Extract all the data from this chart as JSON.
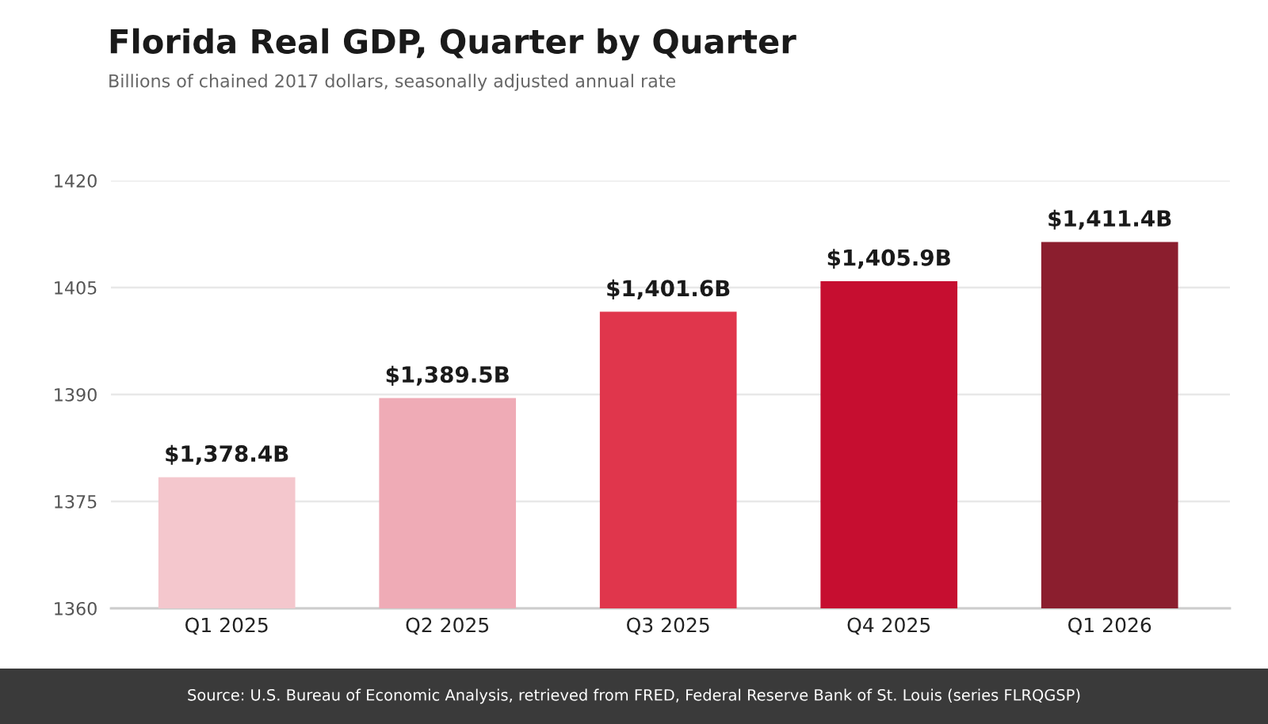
{
  "chart_data": {
    "type": "bar",
    "title": "Florida Real GDP, Quarter by Quarter",
    "subtitle": "Billions of chained 2017 dollars, seasonally adjusted annual rate",
    "categories": [
      "Q1 2025",
      "Q2 2025",
      "Q3 2025",
      "Q4 2025",
      "Q1 2026"
    ],
    "values": [
      1378.4,
      1389.5,
      1401.6,
      1405.9,
      1411.4
    ],
    "colors": [
      "#f4c7cd",
      "#efabb6",
      "#e0364c",
      "#c60e30",
      "#8b1e2e"
    ],
    "value_labels": [
      "$1,378.4B",
      "$1,389.5B",
      "$1,401.6B",
      "$1,405.9B",
      "$1,411.4B"
    ],
    "ylim": [
      1360,
      1420
    ],
    "yticks": [
      1360,
      1375,
      1390,
      1405,
      1420
    ],
    "grid": "y",
    "annotations": [
      "Source: U.S. Bureau of Economic Analysis, retrieved from FRED, Federal Reserve Bank of St. Louis (series FLRQGSP)"
    ]
  }
}
